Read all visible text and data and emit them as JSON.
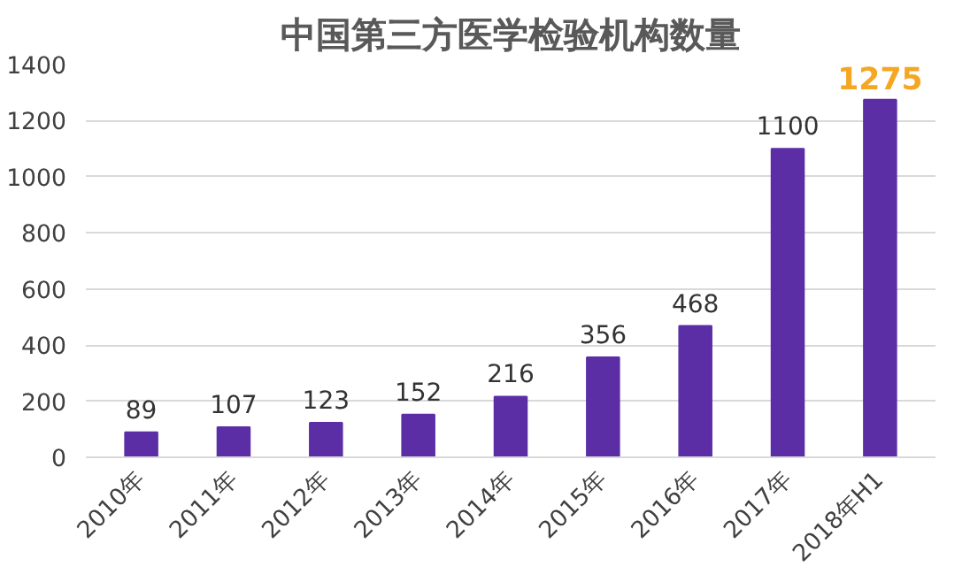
{
  "chart_data": {
    "type": "bar",
    "title": "中国第三方医学检验机构数量",
    "categories": [
      "2010年",
      "2011年",
      "2012年",
      "2013年",
      "2014年",
      "2015年",
      "2016年",
      "2017年",
      "2018年H1"
    ],
    "values": [
      89,
      107,
      123,
      152,
      216,
      356,
      468,
      1100,
      1275
    ],
    "color": "#5b2ea6",
    "ylim": [
      0,
      1400
    ],
    "yticks": [
      0,
      200,
      400,
      600,
      800,
      1000,
      1200,
      1400
    ],
    "grid": "y",
    "data_labels": true
  }
}
